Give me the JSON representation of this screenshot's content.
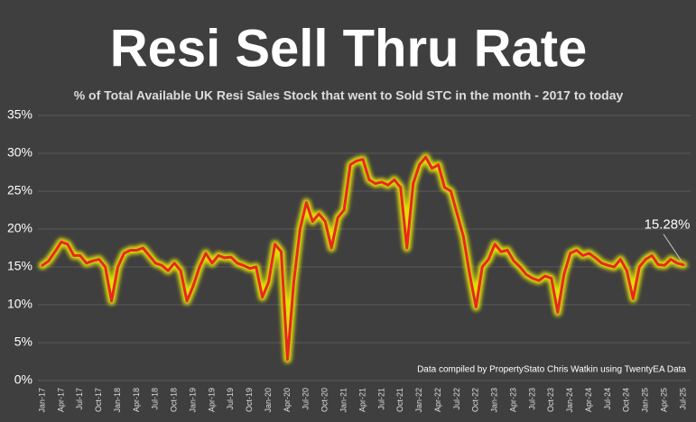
{
  "chart_data": {
    "type": "line",
    "title": "Resi Sell Thru Rate",
    "subtitle": "% of Total Available UK Resi Sales Stock that went to Sold STC in the month - 2017 to today",
    "note": "Data compiled by PropertyStato Chris Watkin using TwentyEA Data",
    "categories": [
      "Jan-17",
      null,
      null,
      "Apr-17",
      null,
      null,
      "Jul-17",
      null,
      null,
      "Oct-17",
      null,
      null,
      "Jan-18",
      null,
      null,
      "Apr-18",
      null,
      null,
      "Jul-18",
      null,
      null,
      "Oct-18",
      null,
      null,
      "Jan-19",
      null,
      null,
      "Apr-19",
      null,
      null,
      "Jul-19",
      null,
      null,
      "Oct-19",
      null,
      null,
      "Jan-20",
      null,
      null,
      "Apr-20",
      null,
      null,
      "Jul-20",
      null,
      null,
      "Oct-20",
      null,
      null,
      "Jan-21",
      null,
      null,
      "Apr-21",
      null,
      null,
      "Jul-21",
      null,
      null,
      "Oct-21",
      null,
      null,
      "Jan-22",
      null,
      null,
      "Apr-22",
      null,
      null,
      "Jul-22",
      null,
      null,
      "Oct-22",
      null,
      null,
      "Jan-23",
      null,
      null,
      "Apr-23",
      null,
      null,
      "Jul-23",
      null,
      null,
      "Oct-23",
      null,
      null,
      "Jan-24",
      null,
      null,
      "Apr-24",
      null,
      null,
      "Jul-24",
      null,
      null,
      "Oct-24",
      null,
      null,
      "Jan-25",
      null,
      null,
      "Apr-25",
      null,
      null,
      "Jul-25"
    ],
    "series": [
      {
        "color": "#e8281e",
        "values": [
          15.2,
          15.8,
          17,
          18.3,
          18,
          16.5,
          16.5,
          15.5,
          15.8,
          16,
          15,
          10.5,
          15,
          16.8,
          17.2,
          17.2,
          17.5,
          16.5,
          15.5,
          15.2,
          14.5,
          15.5,
          14.5,
          10.5,
          12.5,
          15,
          16.8,
          15.5,
          16.5,
          16.2,
          16.3,
          15.5,
          15.2,
          14.8,
          15,
          11,
          13,
          18,
          17,
          2.8,
          13,
          20,
          23.5,
          21,
          22,
          21,
          17.5,
          21.5,
          22.5,
          28.5,
          29,
          29.2,
          26.5,
          26,
          26.2,
          25.8,
          26.5,
          25.5,
          17.5,
          26,
          28.5,
          29.5,
          28,
          28.5,
          25.5,
          25,
          22,
          19,
          14,
          9.7,
          15,
          16,
          18,
          17,
          17.2,
          15.8,
          15,
          14,
          13.5,
          13.2,
          13.8,
          13.5,
          9,
          14,
          16.8,
          17.2,
          16.5,
          16.8,
          16.2,
          15.5,
          15.2,
          15,
          16,
          14.5,
          10.8,
          15,
          16,
          16.5,
          15.3,
          15.2,
          16,
          15.5,
          15.28
        ]
      }
    ],
    "glow_color": "#f2f000",
    "annotations": [
      {
        "label": "15.28%",
        "value": 15.28
      }
    ],
    "ylim": [
      0,
      35
    ],
    "yticks": [
      {
        "value": 0,
        "label": "0%"
      },
      {
        "value": 5,
        "label": "5%"
      },
      {
        "value": 10,
        "label": "10%"
      },
      {
        "value": 15,
        "label": "15%"
      },
      {
        "value": 20,
        "label": "20%"
      },
      {
        "value": 25,
        "label": "25%"
      },
      {
        "value": 30,
        "label": "30%"
      },
      {
        "value": 35,
        "label": "35%"
      }
    ],
    "grid": true
  }
}
